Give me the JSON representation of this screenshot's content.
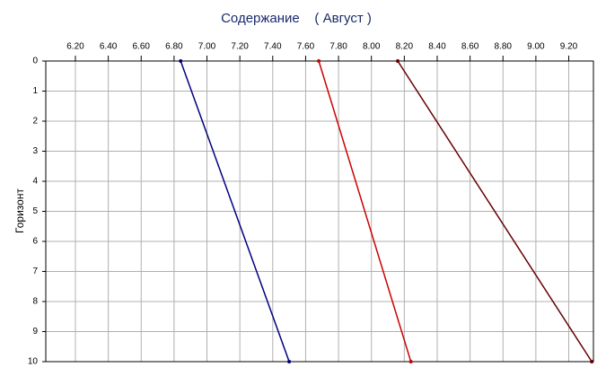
{
  "chart_data": {
    "type": "line",
    "title": "Содержание    ( Август )",
    "y_label": "Горизонт",
    "y": [
      0,
      10
    ],
    "series": [
      {
        "color": "#000080",
        "values": [
          6.84,
          7.5
        ]
      },
      {
        "color": "#cc0000",
        "values": [
          7.68,
          8.24
        ]
      },
      {
        "color": "#660000",
        "values": [
          8.16,
          9.34
        ]
      }
    ],
    "xlim": [
      6.02,
      9.35
    ],
    "xticks": [
      {
        "value": 6.2,
        "label": "6.20"
      },
      {
        "value": 6.4,
        "label": "6.40"
      },
      {
        "value": 6.6,
        "label": "6.60"
      },
      {
        "value": 6.8,
        "label": "6.80"
      },
      {
        "value": 7.0,
        "label": "7.00"
      },
      {
        "value": 7.2,
        "label": "7.20"
      },
      {
        "value": 7.4,
        "label": "7.40"
      },
      {
        "value": 7.6,
        "label": "7.60"
      },
      {
        "value": 7.8,
        "label": "7.80"
      },
      {
        "value": 8.0,
        "label": "8.00"
      },
      {
        "value": 8.2,
        "label": "8.20"
      },
      {
        "value": 8.4,
        "label": "8.40"
      },
      {
        "value": 8.6,
        "label": "8.60"
      },
      {
        "value": 8.8,
        "label": "8.80"
      },
      {
        "value": 9.0,
        "label": "9.00"
      },
      {
        "value": 9.2,
        "label": "9.20"
      }
    ],
    "ylim": [
      0,
      10
    ],
    "yticks": [
      0,
      1,
      2,
      3,
      4,
      5,
      6,
      7,
      8,
      9,
      10
    ],
    "y_inverted": true,
    "x_axis_position": "top",
    "grid": true
  }
}
